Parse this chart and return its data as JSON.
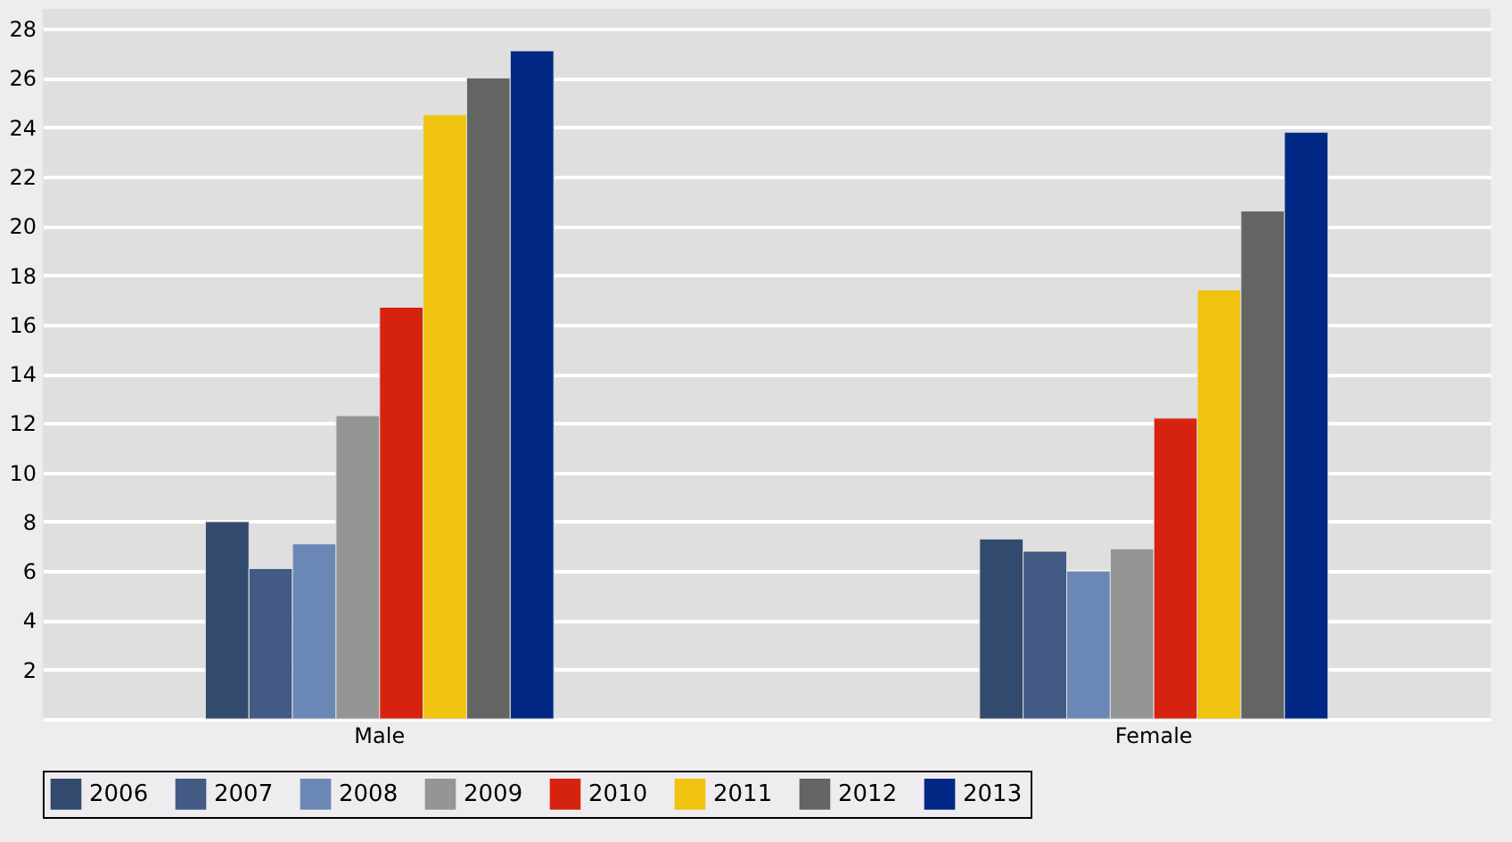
{
  "chart_data": {
    "type": "bar",
    "categories": [
      "Male",
      "Female"
    ],
    "series": [
      {
        "name": "2006",
        "color": "#314a6e",
        "values": [
          8.0,
          7.3
        ]
      },
      {
        "name": "2007",
        "color": "#425a84",
        "values": [
          6.1,
          6.8
        ]
      },
      {
        "name": "2008",
        "color": "#6b87b5",
        "values": [
          7.1,
          6.0
        ]
      },
      {
        "name": "2009",
        "color": "#949694",
        "values": [
          12.3,
          6.9
        ]
      },
      {
        "name": "2010",
        "color": "#d62310",
        "values": [
          16.7,
          12.2
        ]
      },
      {
        "name": "2011",
        "color": "#efc310",
        "values": [
          24.5,
          17.4
        ]
      },
      {
        "name": "2012",
        "color": "#636563",
        "values": [
          26.0,
          20.6
        ]
      },
      {
        "name": "2013",
        "color": "#002884",
        "values": [
          27.1,
          23.8
        ]
      }
    ],
    "ylim": [
      0,
      28.8
    ],
    "yticks": [
      2,
      4,
      6,
      8,
      10,
      12,
      14,
      16,
      18,
      20,
      22,
      24,
      26,
      28
    ],
    "grid": "y",
    "legend": "bottom"
  }
}
